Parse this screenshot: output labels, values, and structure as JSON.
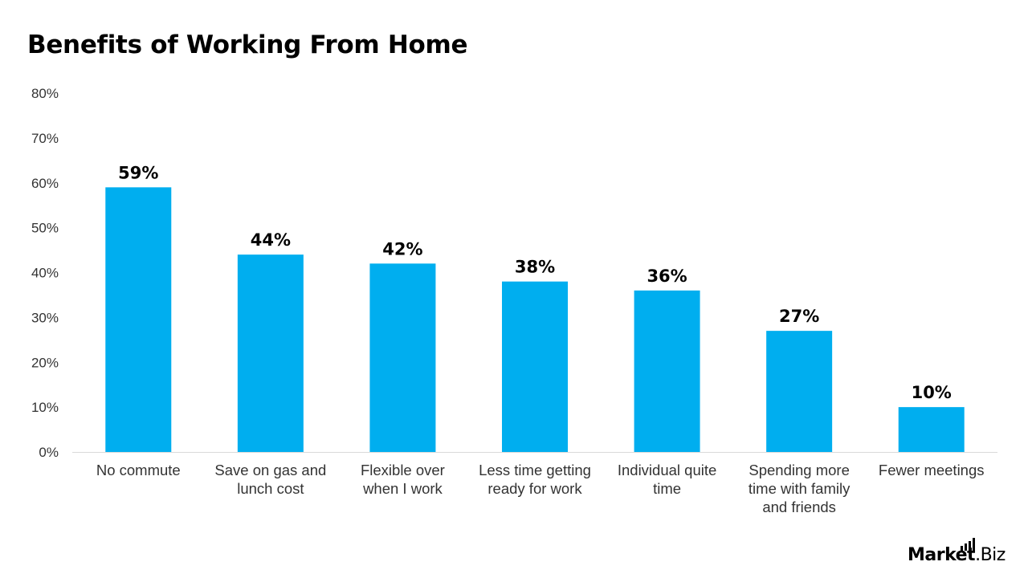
{
  "chart_data": {
    "type": "bar",
    "title": "Benefits of Working From Home",
    "categories": [
      [
        "No commute"
      ],
      [
        "Save on gas and",
        "lunch cost"
      ],
      [
        "Flexible over",
        "when I work"
      ],
      [
        "Less time getting",
        "ready for work"
      ],
      [
        "Individual quite",
        "time"
      ],
      [
        "Spending more",
        "time with family",
        "and friends"
      ],
      [
        "Fewer meetings"
      ]
    ],
    "values": [
      59,
      44,
      42,
      38,
      36,
      27,
      10
    ],
    "data_labels": [
      "59%",
      "44%",
      "42%",
      "38%",
      "36%",
      "27%",
      "10%"
    ],
    "ylim": [
      0,
      80
    ],
    "y_ticks": [
      "0%",
      "10%",
      "20%",
      "30%",
      "40%",
      "50%",
      "60%",
      "70%",
      "80%"
    ],
    "bar_color": "#00AEEF",
    "grid": false
  },
  "branding": {
    "logo_main": "Market",
    "logo_suffix": ".Biz"
  }
}
